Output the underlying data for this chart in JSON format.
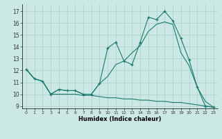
{
  "xlabel": "Humidex (Indice chaleur)",
  "bg_color": "#cce8e4",
  "grid_color": "#aacfca",
  "line_color": "#1a7a6e",
  "xlim": [
    -0.5,
    23.5
  ],
  "ylim": [
    8.8,
    17.6
  ],
  "yticks": [
    9,
    10,
    11,
    12,
    13,
    14,
    15,
    16,
    17
  ],
  "xticks": [
    0,
    1,
    2,
    3,
    4,
    5,
    6,
    7,
    8,
    9,
    10,
    11,
    12,
    13,
    14,
    15,
    16,
    17,
    18,
    19,
    20,
    21,
    22,
    23
  ],
  "line1_x": [
    0,
    1,
    2,
    3,
    4,
    5,
    6,
    7,
    8,
    9,
    10,
    11,
    12,
    13,
    14,
    15,
    16,
    17,
    18,
    19,
    20,
    21,
    22,
    23
  ],
  "line1_y": [
    12.1,
    11.3,
    11.1,
    10.0,
    10.4,
    10.3,
    10.3,
    10.0,
    10.0,
    10.9,
    13.9,
    14.4,
    12.8,
    12.5,
    14.4,
    16.5,
    16.3,
    17.0,
    16.2,
    14.7,
    12.9,
    10.6,
    9.0,
    8.9
  ],
  "line2_x": [
    0,
    1,
    2,
    3,
    4,
    5,
    6,
    7,
    8,
    9,
    10,
    11,
    12,
    13,
    14,
    15,
    16,
    17,
    18,
    19,
    20,
    21,
    22,
    23
  ],
  "line2_y": [
    12.1,
    11.3,
    11.1,
    10.0,
    10.4,
    10.3,
    10.3,
    10.0,
    10.0,
    10.9,
    11.5,
    12.5,
    12.8,
    13.5,
    14.1,
    15.3,
    15.9,
    16.1,
    15.9,
    13.5,
    12.4,
    10.6,
    9.4,
    8.9
  ],
  "line3_x": [
    0,
    1,
    2,
    3,
    4,
    5,
    6,
    7,
    8,
    9,
    10,
    11,
    12,
    13,
    14,
    15,
    16,
    17,
    18,
    19,
    20,
    21,
    22,
    23
  ],
  "line3_y": [
    12.1,
    11.3,
    11.1,
    10.0,
    10.0,
    10.0,
    10.0,
    9.9,
    9.9,
    9.8,
    9.7,
    9.7,
    9.6,
    9.6,
    9.5,
    9.5,
    9.4,
    9.4,
    9.3,
    9.3,
    9.2,
    9.1,
    9.0,
    8.9
  ]
}
